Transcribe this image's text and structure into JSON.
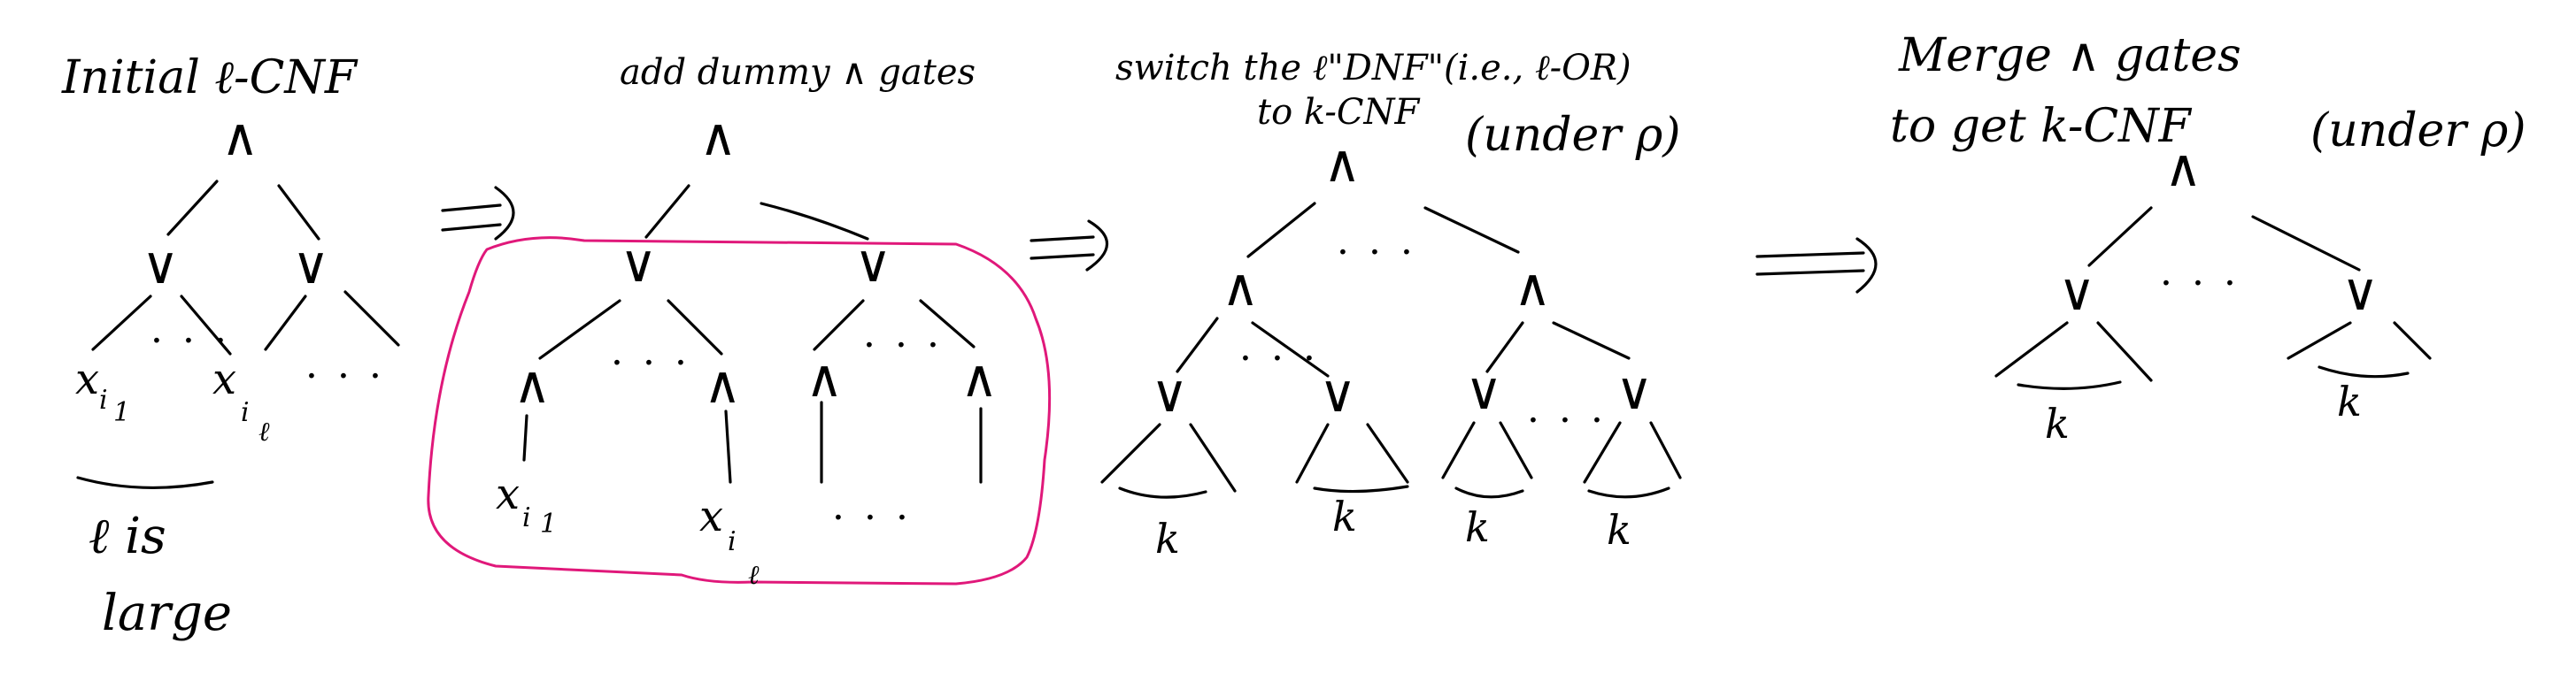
{
  "colors": {
    "ink": "#000000",
    "highlight": "#e0187a",
    "background": "#ffffff"
  },
  "labels": {
    "and_symbol": "∧",
    "or_symbol": "∨",
    "ellipsis": "· · ·",
    "var_x": "x",
    "sub_i": "i",
    "sub_1": "1",
    "sub_l": "ℓ",
    "k": "k"
  },
  "stage1": {
    "title": "Initial  ℓ-CNF",
    "note_line1": "ℓ is",
    "note_line2": "large"
  },
  "stage2": {
    "title": "add dummy ∧ gates"
  },
  "stage3": {
    "title_line1": "switch  the  ℓ\"DNF\"(i.e., ℓ-OR)",
    "title_line2": "to k-CNF",
    "title_line3": "(under ρ)"
  },
  "stage4": {
    "title_line1": "Merge   ∧  gates",
    "title_line2": "to get  k-CNF",
    "title_line3": "(under ρ)"
  },
  "arrows": {
    "implies": "⟹"
  }
}
